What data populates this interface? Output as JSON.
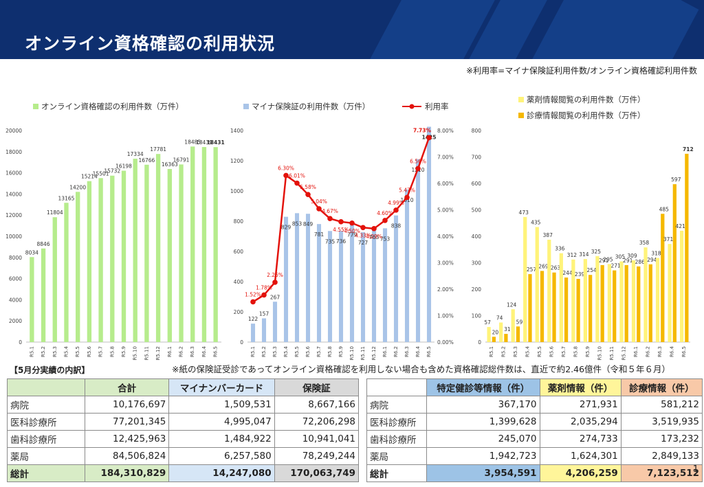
{
  "page": {
    "title": "オンライン資格確認の利用状況",
    "formula_note": "※利用率=マイナ保険証利用件数/オンライン資格確認利用件数",
    "breakdown_label": "【5月分実績の内訳】",
    "paper_note": "※紙の保険証受診であってオンライン資格確認を利用しない場合も含めた資格確認総件数は、直近で約2.46億件（令和５年６月）",
    "page_number": "1"
  },
  "colors": {
    "header": "#0e2f6f",
    "green": "#b6ec8c",
    "blue": "#a9c4e8",
    "red": "#e3120b",
    "light_yellow": "#fff37a",
    "yellow": "#f5b800"
  },
  "chart_data": [
    {
      "type": "bar",
      "categories": [
        "R5.1",
        "R5.2",
        "R5.3",
        "R5.4",
        "R5.5",
        "R5.6",
        "R5.7",
        "R5.8",
        "R5.9",
        "R5.10",
        "R5.11",
        "R5.12",
        "R6.1",
        "R6.2",
        "R6.3",
        "R6.4",
        "R6.5"
      ],
      "series": [
        {
          "name": "オンライン資格確認の利用件数（万件）",
          "values": [
            8034,
            8846,
            11804,
            13165,
            14200,
            15214,
            15501,
            15732,
            16198,
            17334,
            16766,
            17781,
            16363,
            16791,
            18485,
            18439,
            18431
          ]
        }
      ],
      "ylim": [
        0,
        20000
      ],
      "yticks": [
        0,
        2000,
        4000,
        6000,
        8000,
        10000,
        12000,
        14000,
        16000,
        18000,
        20000
      ],
      "grid": false,
      "legend": "top-left"
    },
    {
      "type": "bar",
      "categories": [
        "R5.1",
        "R5.2",
        "R5.3",
        "R5.4",
        "R5.5",
        "R5.6",
        "R5.7",
        "R5.8",
        "R5.9",
        "R5.10",
        "R5.11",
        "R5.12",
        "R6.1",
        "R6.2",
        "R6.3",
        "R6.4",
        "R6.5"
      ],
      "series": [
        {
          "name": "マイナ保険証の利用件数（万件）",
          "type": "bar",
          "axis": "left",
          "values": [
            122,
            157,
            267,
            829,
            853,
            849,
            781,
            735,
            736,
            779,
            727,
            763,
            753,
            838,
            1010,
            1210,
            1425
          ]
        },
        {
          "name": "利用率",
          "type": "line",
          "axis": "right",
          "values": [
            1.52,
            1.78,
            2.26,
            6.3,
            6.01,
            5.58,
            5.04,
            4.67,
            4.55,
            4.5,
            4.33,
            4.29,
            4.6,
            4.99,
            5.47,
            6.56,
            7.73
          ],
          "labels": [
            "1.52%",
            "1.78%",
            "2.26%",
            "6.30%",
            "6.01%",
            "5.58%",
            "5.04%",
            "4.67%",
            "4.55%",
            "4.50%",
            "4.33%",
            "4.29%",
            "4.60%",
            "4.99%",
            "5.47%",
            "6.56%",
            "7.73%"
          ]
        }
      ],
      "ylim": [
        0,
        1400
      ],
      "yticks": [
        0,
        200,
        400,
        600,
        800,
        1000,
        1200,
        1400
      ],
      "y2lim": [
        0,
        8
      ],
      "y2ticks": [
        "0.00%",
        "1.00%",
        "2.00%",
        "3.00%",
        "4.00%",
        "5.00%",
        "6.00%",
        "7.00%",
        "8.00%"
      ],
      "grid": false,
      "legend": "top"
    },
    {
      "type": "bar",
      "categories": [
        "R5.1",
        "R5.2",
        "R5.3",
        "R5.4",
        "R5.5",
        "R5.6",
        "R5.7",
        "R5.8",
        "R5.9",
        "R5.10",
        "R5.11",
        "R5.12",
        "R6.1",
        "R6.2",
        "R6.3",
        "R6.4",
        "R6.5"
      ],
      "series": [
        {
          "name": "薬剤情報閲覧の利用件数（万件）",
          "values": [
            57,
            74,
            124,
            473,
            435,
            387,
            336,
            312,
            314,
            325,
            295,
            305,
            309,
            358,
            318,
            371,
            421
          ]
        },
        {
          "name": "診療情報閲覧の利用件数（万件）",
          "values": [
            20,
            31,
            59,
            257,
            269,
            263,
            244,
            239,
            254,
            291,
            271,
            291,
            286,
            294,
            485,
            597,
            712
          ]
        }
      ],
      "ylim": [
        0,
        800
      ],
      "yticks": [
        0,
        100,
        200,
        300,
        400,
        500,
        600,
        700,
        800
      ],
      "grid": false,
      "legend": "top-right"
    }
  ],
  "table1": {
    "headers": [
      "",
      "合計",
      "マイナンバーカード",
      "保険証"
    ],
    "rows": [
      {
        "label": "病院",
        "total": "10,176,697",
        "card": "1,509,531",
        "insurance": "8,667,166"
      },
      {
        "label": "医科診療所",
        "total": "77,201,345",
        "card": "4,995,047",
        "insurance": "72,206,298"
      },
      {
        "label": "歯科診療所",
        "total": "12,425,963",
        "card": "1,484,922",
        "insurance": "10,941,041"
      },
      {
        "label": "薬局",
        "total": "84,506,824",
        "card": "6,257,580",
        "insurance": "78,249,244"
      }
    ],
    "total_row": {
      "label": "総計",
      "total": "184,310,829",
      "card": "14,247,080",
      "insurance": "170,063,749"
    }
  },
  "table2": {
    "headers": [
      "",
      "特定健診等情報（件）",
      "薬剤情報（件）",
      "診療情報（件）"
    ],
    "rows": [
      {
        "label": "病院",
        "health": "367,170",
        "drug": "271,931",
        "medical": "581,212"
      },
      {
        "label": "医科診療所",
        "health": "1,399,628",
        "drug": "2,035,294",
        "medical": "3,519,935"
      },
      {
        "label": "歯科診療所",
        "health": "245,070",
        "drug": "274,733",
        "medical": "173,232"
      },
      {
        "label": "薬局",
        "health": "1,942,723",
        "drug": "1,624,301",
        "medical": "2,849,133"
      }
    ],
    "total_row": {
      "label": "総計",
      "health": "3,954,591",
      "drug": "4,206,259",
      "medical": "7,123,512"
    }
  }
}
